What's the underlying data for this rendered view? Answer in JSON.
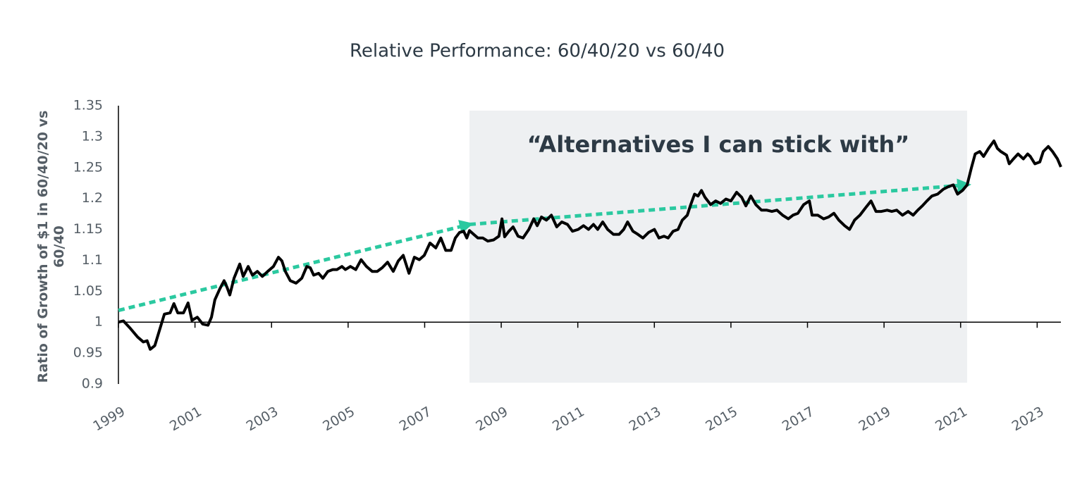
{
  "chart_data": {
    "type": "line",
    "title": "Relative Performance: 60/40/20 vs 60/40",
    "ylabel": "Ratio of Growth of $1 in 60/40/20 vs 60/40",
    "xlim": [
      1999,
      2023.62
    ],
    "xticks": [
      1999,
      2001,
      2003,
      2005,
      2007,
      2009,
      2011,
      2013,
      2015,
      2017,
      2019,
      2021,
      2023
    ],
    "ylim": [
      0.9,
      1.35
    ],
    "yticks": [
      0.9,
      0.95,
      1,
      1.05,
      1.1,
      1.15,
      1.2,
      1.25,
      1.3,
      1.35
    ],
    "grid": false,
    "highlight": {
      "x": [
        2008.17,
        2021.17
      ],
      "y": [
        0.902,
        1.342
      ],
      "color": "#eef0f2",
      "label": "“Alternatives I can stick with”"
    },
    "trend": {
      "x": [
        1999,
        2008.17,
        2021.17
      ],
      "y": [
        1.019,
        1.158,
        1.222
      ],
      "color": "#2bc9a0"
    },
    "x": [
      1999.0,
      1999.13,
      1999.31,
      1999.5,
      1999.65,
      1999.75,
      1999.83,
      1999.95,
      2000.2,
      2000.35,
      2000.45,
      2000.55,
      2000.7,
      2000.82,
      2000.92,
      2001.06,
      2001.2,
      2001.34,
      2001.43,
      2001.52,
      2001.65,
      2001.76,
      2001.84,
      2001.91,
      2002.02,
      2002.17,
      2002.26,
      2002.39,
      2002.5,
      2002.63,
      2002.76,
      2002.9,
      2003.05,
      2003.18,
      2003.27,
      2003.36,
      2003.49,
      2003.64,
      2003.79,
      2003.92,
      2004.01,
      2004.1,
      2004.23,
      2004.34,
      2004.47,
      2004.6,
      2004.71,
      2004.84,
      2004.93,
      2005.06,
      2005.2,
      2005.34,
      2005.48,
      2005.63,
      2005.76,
      2005.89,
      2006.03,
      2006.18,
      2006.31,
      2006.44,
      2006.59,
      2006.73,
      2006.86,
      2006.99,
      2007.14,
      2007.29,
      2007.42,
      2007.55,
      2007.69,
      2007.8,
      2007.91,
      2008.02,
      2008.1,
      2008.17,
      2008.28,
      2008.39,
      2008.52,
      2008.65,
      2008.8,
      2008.94,
      2009.02,
      2009.09,
      2009.2,
      2009.31,
      2009.44,
      2009.57,
      2009.72,
      2009.85,
      2009.94,
      2010.05,
      2010.18,
      2010.31,
      2010.45,
      2010.58,
      2010.73,
      2010.86,
      2011.01,
      2011.15,
      2011.28,
      2011.41,
      2011.52,
      2011.65,
      2011.78,
      2011.93,
      2012.08,
      2012.2,
      2012.3,
      2012.44,
      2012.57,
      2012.7,
      2012.85,
      2013.0,
      2013.12,
      2013.25,
      2013.36,
      2013.49,
      2013.62,
      2013.73,
      2013.86,
      2013.95,
      2014.05,
      2014.14,
      2014.23,
      2014.32,
      2014.47,
      2014.6,
      2014.73,
      2014.87,
      2015.0,
      2015.15,
      2015.28,
      2015.39,
      2015.52,
      2015.65,
      2015.8,
      2015.94,
      2016.07,
      2016.2,
      2016.35,
      2016.5,
      2016.62,
      2016.75,
      2016.9,
      2017.05,
      2017.12,
      2017.27,
      2017.42,
      2017.55,
      2017.69,
      2017.82,
      2017.97,
      2018.1,
      2018.23,
      2018.37,
      2018.52,
      2018.66,
      2018.79,
      2018.93,
      2019.08,
      2019.2,
      2019.33,
      2019.48,
      2019.63,
      2019.76,
      2019.88,
      2020.0,
      2020.12,
      2020.25,
      2020.4,
      2020.55,
      2020.68,
      2020.81,
      2020.92,
      2021.05,
      2021.17,
      2021.28,
      2021.38,
      2021.5,
      2021.6,
      2021.73,
      2021.87,
      2021.96,
      2022.05,
      2022.2,
      2022.27,
      2022.38,
      2022.5,
      2022.64,
      2022.75,
      2022.82,
      2022.94,
      2023.07,
      2023.16,
      2023.29,
      2023.4,
      2023.53,
      2023.62
    ],
    "series": [
      {
        "name": "Ratio",
        "color": "#000000",
        "values": [
          1.0,
          1.002,
          0.99,
          0.976,
          0.968,
          0.97,
          0.956,
          0.962,
          1.013,
          1.015,
          1.03,
          1.015,
          1.015,
          1.031,
          1.003,
          1.008,
          0.997,
          0.995,
          1.008,
          1.036,
          1.054,
          1.067,
          1.056,
          1.044,
          1.071,
          1.094,
          1.074,
          1.09,
          1.076,
          1.082,
          1.074,
          1.082,
          1.09,
          1.105,
          1.099,
          1.082,
          1.067,
          1.063,
          1.071,
          1.09,
          1.088,
          1.076,
          1.079,
          1.071,
          1.082,
          1.085,
          1.085,
          1.09,
          1.085,
          1.09,
          1.085,
          1.101,
          1.09,
          1.082,
          1.082,
          1.088,
          1.097,
          1.082,
          1.099,
          1.108,
          1.079,
          1.105,
          1.101,
          1.108,
          1.128,
          1.12,
          1.136,
          1.116,
          1.116,
          1.136,
          1.145,
          1.147,
          1.136,
          1.148,
          1.142,
          1.136,
          1.136,
          1.131,
          1.133,
          1.139,
          1.167,
          1.138,
          1.147,
          1.154,
          1.139,
          1.136,
          1.15,
          1.167,
          1.156,
          1.17,
          1.165,
          1.173,
          1.154,
          1.162,
          1.158,
          1.147,
          1.15,
          1.156,
          1.15,
          1.158,
          1.15,
          1.162,
          1.15,
          1.142,
          1.142,
          1.15,
          1.162,
          1.147,
          1.142,
          1.136,
          1.145,
          1.15,
          1.136,
          1.139,
          1.136,
          1.147,
          1.15,
          1.165,
          1.173,
          1.19,
          1.207,
          1.204,
          1.213,
          1.202,
          1.19,
          1.196,
          1.192,
          1.199,
          1.196,
          1.21,
          1.202,
          1.188,
          1.204,
          1.19,
          1.181,
          1.181,
          1.179,
          1.181,
          1.173,
          1.167,
          1.173,
          1.176,
          1.19,
          1.196,
          1.173,
          1.173,
          1.167,
          1.17,
          1.176,
          1.165,
          1.156,
          1.15,
          1.165,
          1.173,
          1.185,
          1.196,
          1.179,
          1.179,
          1.181,
          1.179,
          1.181,
          1.173,
          1.179,
          1.173,
          1.181,
          1.188,
          1.196,
          1.204,
          1.207,
          1.215,
          1.219,
          1.222,
          1.207,
          1.213,
          1.222,
          1.249,
          1.272,
          1.276,
          1.268,
          1.281,
          1.293,
          1.281,
          1.276,
          1.27,
          1.256,
          1.264,
          1.272,
          1.264,
          1.272,
          1.268,
          1.256,
          1.259,
          1.276,
          1.284,
          1.276,
          1.264,
          1.251
        ]
      }
    ]
  }
}
